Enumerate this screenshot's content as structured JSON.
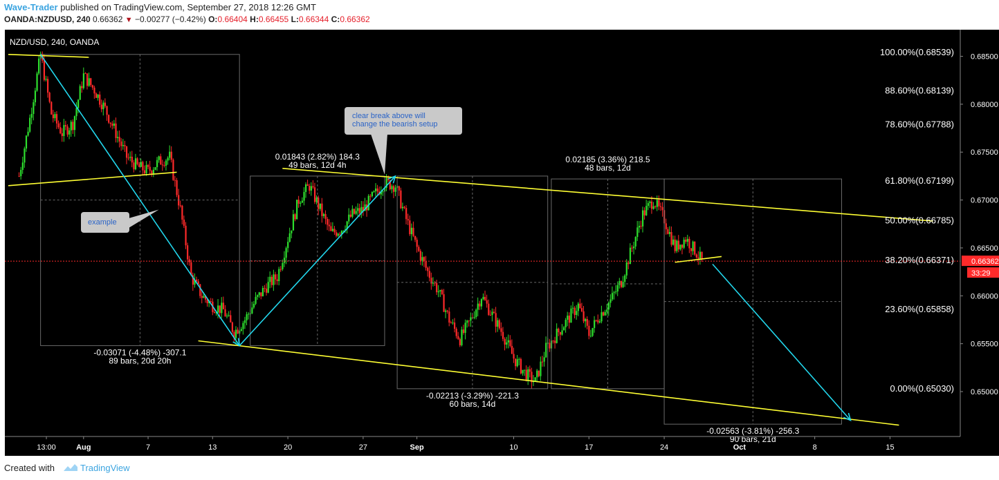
{
  "header": {
    "author": "Wave-Trader",
    "published": "published on TradingView.com, September 27, 2018 12:26 GMT",
    "symbol": "OANDA:NZDUSD, 240",
    "last": "0.66362",
    "change": "−0.00277 (−0.42%)",
    "o_label": "O:",
    "o": "0.66404",
    "h_label": "H:",
    "h": "0.66455",
    "l_label": "L:",
    "l": "0.66344",
    "c_label": "C:",
    "c": "0.66362"
  },
  "chart_data": {
    "type": "candlestick",
    "title": "NZD/USD, 240, OANDA",
    "colors": {
      "up": "#2ee02e",
      "down": "#ff2a2a",
      "trend": "#ffff33",
      "arrow": "#22d8ee",
      "price_line": "#ff2a2a"
    },
    "y_axis": {
      "ylim": [
        0.6462,
        0.6862
      ],
      "ticks": [
        "0.68500",
        "0.68000",
        "0.67500",
        "0.67000",
        "0.66500",
        "0.66000",
        "0.65500",
        "0.65000"
      ]
    },
    "x_axis": {
      "ticks": [
        "13:00",
        "Aug",
        "7",
        "13",
        "20",
        "27",
        "Sep",
        "10",
        "17",
        "24",
        "Oct",
        "8",
        "15"
      ],
      "bold_ticks": [
        "Aug",
        "Sep",
        "Oct"
      ]
    },
    "price_path": [
      [
        "Jul 26 00:00",
        0.6725
      ],
      [
        "Jul 27 00:00",
        0.6785
      ],
      [
        "Jul 28 00:00",
        0.6852
      ],
      [
        "Jul 29 00:00",
        0.679
      ],
      [
        "Jul 30 00:00",
        0.677
      ],
      [
        "Jul 31 00:00",
        0.678
      ],
      [
        "Aug 1 00:00",
        0.683
      ],
      [
        "Aug 2 00:00",
        0.6815
      ],
      [
        "Aug 3 00:00",
        0.6795
      ],
      [
        "Aug 4 00:00",
        0.677
      ],
      [
        "Aug 5 00:00",
        0.6745
      ],
      [
        "Aug 6 00:00",
        0.6735
      ],
      [
        "Aug 7 00:00",
        0.673
      ],
      [
        "Aug 8 00:00",
        0.674
      ],
      [
        "Aug 9 00:00",
        0.6745
      ],
      [
        "Aug 10 00:00",
        0.669
      ],
      [
        "Aug 11 00:00",
        0.662
      ],
      [
        "Aug 12 00:00",
        0.66
      ],
      [
        "Aug 13 00:00",
        0.659
      ],
      [
        "Aug 14 00:00",
        0.6585
      ],
      [
        "Aug 15 00:00",
        0.6562
      ],
      [
        "Aug 16 00:00",
        0.6575
      ],
      [
        "Aug 17 00:00",
        0.6595
      ],
      [
        "Aug 18 00:00",
        0.661
      ],
      [
        "Aug 19 00:00",
        0.662
      ],
      [
        "Aug 20 00:00",
        0.666
      ],
      [
        "Aug 21 00:00",
        0.67
      ],
      [
        "Aug 22 00:00",
        0.6715
      ],
      [
        "Aug 23 00:00",
        0.669
      ],
      [
        "Aug 24 00:00",
        0.6665
      ],
      [
        "Aug 25 00:00",
        0.667
      ],
      [
        "Aug 26 00:00",
        0.6685
      ],
      [
        "Aug 27 00:00",
        0.669
      ],
      [
        "Aug 28 00:00",
        0.6705
      ],
      [
        "Aug 29 00:00",
        0.6718
      ],
      [
        "Aug 30 00:00",
        0.6715
      ],
      [
        "Aug 31 00:00",
        0.668
      ],
      [
        "Sep 1 00:00",
        0.665
      ],
      [
        "Sep 2 00:00",
        0.6625
      ],
      [
        "Sep 3 00:00",
        0.6605
      ],
      [
        "Sep 4 00:00",
        0.6575
      ],
      [
        "Sep 5 00:00",
        0.6555
      ],
      [
        "Sep 6 00:00",
        0.6575
      ],
      [
        "Sep 7 00:00",
        0.66
      ],
      [
        "Sep 8 00:00",
        0.658
      ],
      [
        "Sep 9 00:00",
        0.656
      ],
      [
        "Sep 10 00:00",
        0.6535
      ],
      [
        "Sep 11 00:00",
        0.652
      ],
      [
        "Sep 12 00:00",
        0.651
      ],
      [
        "Sep 13 00:00",
        0.6545
      ],
      [
        "Sep 14 00:00",
        0.656
      ],
      [
        "Sep 15 00:00",
        0.6575
      ],
      [
        "Sep 16 00:00",
        0.659
      ],
      [
        "Sep 17 00:00",
        0.656
      ],
      [
        "Sep 18 00:00",
        0.658
      ],
      [
        "Sep 19 00:00",
        0.6595
      ],
      [
        "Sep 20 00:00",
        0.6615
      ],
      [
        "Sep 21 00:00",
        0.665
      ],
      [
        "Sep 22 00:00",
        0.6685
      ],
      [
        "Sep 23 00:00",
        0.67
      ],
      [
        "Sep 24 00:00",
        0.668
      ],
      [
        "Sep 25 00:00",
        0.665
      ],
      [
        "Sep 26 00:00",
        0.666
      ],
      [
        "Sep 27 00:00",
        0.6645
      ],
      [
        "Sep 27 12:00",
        0.66362
      ]
    ],
    "trend_lines": [
      {
        "from": [
          "Jul 25 00:00",
          0.6852
        ],
        "to": [
          "Aug 1 12:00",
          0.6849
        ]
      },
      {
        "from": [
          "Jul 25 00:00",
          0.6715
        ],
        "to": [
          "Aug 9 16:00",
          0.6729
        ]
      },
      {
        "from": [
          "Aug 19 12:00",
          0.6733
        ],
        "to": [
          "Oct 19 00:00",
          0.6678
        ]
      },
      {
        "from": [
          "Aug 11 16:00",
          0.6553
        ],
        "to": [
          "Oct 15 20:00",
          0.6465
        ]
      },
      {
        "from": [
          "Sep 25 00:00",
          0.6635
        ],
        "to": [
          "Sep 29 08:00",
          0.6641
        ]
      }
    ],
    "arrows": [
      {
        "from": [
          "Jul 28 00:00",
          0.6852
        ],
        "to": [
          "Aug 15 12:00",
          0.6548
        ]
      },
      {
        "from": [
          "Aug 15 12:00",
          0.6548
        ],
        "to": [
          "Aug 30 00:00",
          0.6725
        ]
      },
      {
        "from": [
          "Sep 28 12:00",
          0.6633
        ],
        "to": [
          "Oct 11 08:00",
          0.647
        ]
      }
    ],
    "measure_boxes": [
      {
        "from": [
          "Jul 28 00:00",
          0.6852
        ],
        "to": [
          "Aug 15 12:00",
          0.6548
        ],
        "label": [
          "-0.03071 (-4.48%) -307.1",
          "89 bars, 20d 20h"
        ]
      },
      {
        "from": [
          "Aug 16 12:00",
          0.6548
        ],
        "to": [
          "Aug 29 00:00",
          0.6725
        ],
        "label": [
          "0.01843 (2.82%) 184.3",
          "49 bars, 12d 4h"
        ]
      },
      {
        "from": [
          "Aug 30 04:00",
          0.6725
        ],
        "to": [
          "Sep 13 04:00",
          0.6503
        ],
        "label": [
          "-0.02213 (-3.29%) -221.3",
          "60 bars, 14d"
        ]
      },
      {
        "from": [
          "Sep 13 12:00",
          0.6503
        ],
        "to": [
          "Sep 24 00:00",
          0.6722
        ],
        "label": [
          "0.02185 (3.36%) 218.5",
          "48 bars, 12d"
        ]
      },
      {
        "from": [
          "Sep 24 00:00",
          0.6722
        ],
        "to": [
          "Oct 10 12:00",
          0.6466
        ],
        "label": [
          "-0.02563 (-3.81%) -256.3",
          "90 bars, 21d"
        ]
      }
    ],
    "fibonacci_levels": [
      {
        "label": "100.00%(0.68539)",
        "value": 0.68539
      },
      {
        "label": "88.60%(0.68139)",
        "value": 0.68139
      },
      {
        "label": "78.60%(0.67788)",
        "value": 0.67788
      },
      {
        "label": "61.80%(0.67199)",
        "value": 0.67199
      },
      {
        "label": "50.00%(0.66785)",
        "value": 0.66785
      },
      {
        "label": "38.20%(0.66371)",
        "value": 0.66371
      },
      {
        "label": "23.60%(0.65858)",
        "value": 0.65858
      },
      {
        "label": "0.00%(0.65030)",
        "value": 0.6503
      }
    ],
    "callouts": [
      {
        "text": [
          "clear break above will",
          "change the bearish setup"
        ],
        "points_to": [
          "Aug 29 00:00",
          0.6725
        ]
      },
      {
        "text": [
          "example"
        ],
        "points_to": [
          "Aug 8 00:00",
          0.669
        ]
      }
    ],
    "current_price": {
      "value": 0.66362,
      "label": "0.66362",
      "countdown": "33:29"
    }
  },
  "footer": {
    "created_with": "Created with",
    "brand": "TradingView"
  }
}
